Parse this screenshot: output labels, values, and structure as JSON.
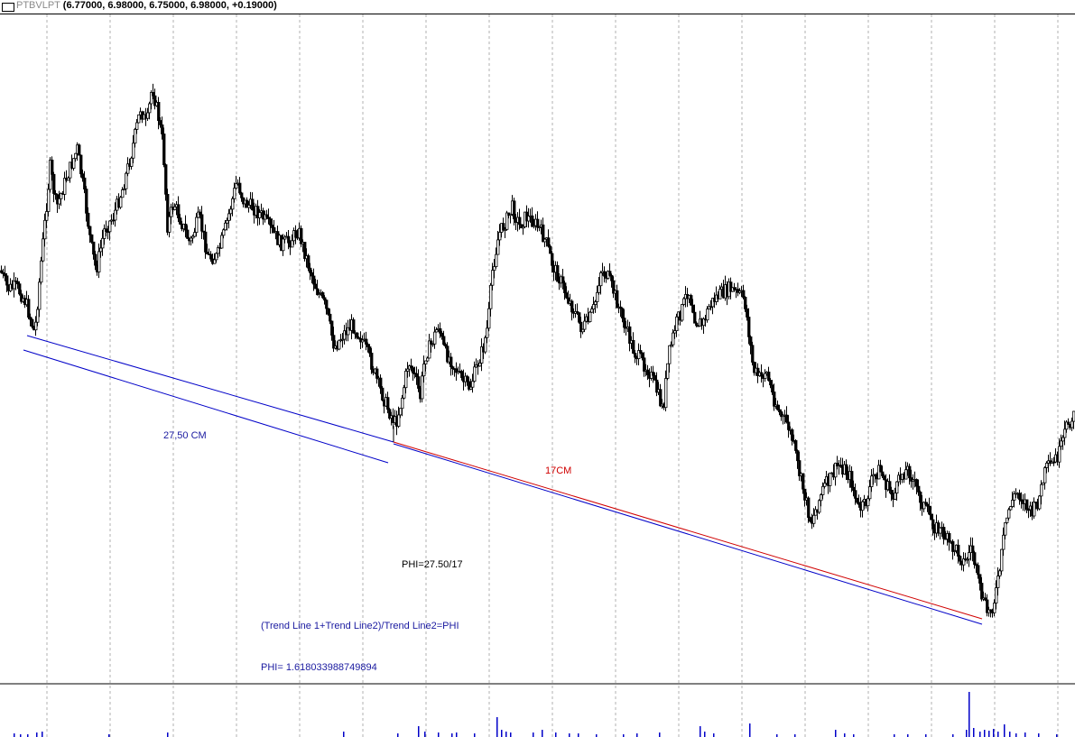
{
  "header": {
    "symbol": "PTBVLPT",
    "ohlc": "(6.77000, 6.98000, 6.75000, 6.98000, +0.19000)"
  },
  "annotations": {
    "trend1_length": "27,50 CM",
    "trend2_length": "17CM",
    "ratio": "PHI=27.50/17",
    "formula": "(Trend Line 1+Trend Line2)/Trend Line2=PHI",
    "phi_value": "PHI= 1.618033988749894"
  },
  "colors": {
    "background": "#ffffff",
    "candles": "#000000",
    "grid": "#b0b0b0",
    "trend_blue": "#0000c8",
    "trend_red": "#d00000",
    "volume_blue": "#0000c8",
    "text_blue": "#1a1aa0",
    "text_red": "#d00000"
  },
  "chart_data": {
    "type": "candlestick",
    "series": "PTBVLPT",
    "last_bar": {
      "open": 6.77,
      "high": 6.98,
      "low": 6.75,
      "close": 6.98,
      "change": 0.19
    },
    "grid": "vertical dotted",
    "volume_panel": true,
    "trend_lines": [
      {
        "name": "Trend Line 1",
        "color": "blue",
        "label": "27,50 CM"
      },
      {
        "name": "Trend Line 2",
        "color": "red",
        "label": "17CM"
      }
    ],
    "path_points": [
      [
        0,
        300
      ],
      [
        8,
        320
      ],
      [
        18,
        318
      ],
      [
        28,
        335
      ],
      [
        38,
        370
      ],
      [
        45,
        290
      ],
      [
        55,
        185
      ],
      [
        62,
        230
      ],
      [
        72,
        200
      ],
      [
        85,
        165
      ],
      [
        92,
        210
      ],
      [
        100,
        270
      ],
      [
        106,
        300
      ],
      [
        115,
        255
      ],
      [
        125,
        240
      ],
      [
        135,
        210
      ],
      [
        145,
        170
      ],
      [
        155,
        120
      ],
      [
        162,
        140
      ],
      [
        168,
        95
      ],
      [
        175,
        130
      ],
      [
        180,
        160
      ],
      [
        185,
        250
      ],
      [
        192,
        225
      ],
      [
        200,
        245
      ],
      [
        210,
        270
      ],
      [
        220,
        240
      ],
      [
        230,
        285
      ],
      [
        240,
        285
      ],
      [
        250,
        250
      ],
      [
        262,
        200
      ],
      [
        270,
        225
      ],
      [
        280,
        230
      ],
      [
        290,
        240
      ],
      [
        300,
        255
      ],
      [
        310,
        270
      ],
      [
        320,
        268
      ],
      [
        330,
        255
      ],
      [
        340,
        290
      ],
      [
        350,
        320
      ],
      [
        360,
        340
      ],
      [
        370,
        385
      ],
      [
        380,
        370
      ],
      [
        390,
        360
      ],
      [
        400,
        375
      ],
      [
        410,
        400
      ],
      [
        420,
        430
      ],
      [
        430,
        455
      ],
      [
        438,
        470
      ],
      [
        445,
        440
      ],
      [
        452,
        400
      ],
      [
        460,
        420
      ],
      [
        465,
        440
      ],
      [
        470,
        395
      ],
      [
        478,
        380
      ],
      [
        485,
        360
      ],
      [
        492,
        390
      ],
      [
        500,
        400
      ],
      [
        510,
        420
      ],
      [
        520,
        430
      ],
      [
        528,
        405
      ],
      [
        535,
        385
      ],
      [
        540,
        360
      ],
      [
        545,
        300
      ],
      [
        552,
        260
      ],
      [
        560,
        245
      ],
      [
        567,
        230
      ],
      [
        575,
        250
      ],
      [
        582,
        240
      ],
      [
        590,
        245
      ],
      [
        598,
        255
      ],
      [
        605,
        270
      ],
      [
        612,
        295
      ],
      [
        620,
        310
      ],
      [
        628,
        330
      ],
      [
        636,
        345
      ],
      [
        644,
        365
      ],
      [
        652,
        355
      ],
      [
        658,
        340
      ],
      [
        665,
        300
      ],
      [
        672,
        305
      ],
      [
        680,
        325
      ],
      [
        688,
        350
      ],
      [
        695,
        370
      ],
      [
        702,
        390
      ],
      [
        710,
        400
      ],
      [
        718,
        410
      ],
      [
        726,
        430
      ],
      [
        734,
        455
      ],
      [
        740,
        395
      ],
      [
        748,
        360
      ],
      [
        756,
        340
      ],
      [
        762,
        320
      ],
      [
        770,
        355
      ],
      [
        778,
        360
      ],
      [
        785,
        340
      ],
      [
        792,
        330
      ],
      [
        800,
        325
      ],
      [
        808,
        320
      ],
      [
        816,
        325
      ],
      [
        824,
        330
      ],
      [
        828,
        360
      ],
      [
        834,
        410
      ],
      [
        842,
        420
      ],
      [
        848,
        410
      ],
      [
        856,
        440
      ],
      [
        864,
        460
      ],
      [
        872,
        470
      ],
      [
        878,
        490
      ],
      [
        884,
        520
      ],
      [
        890,
        545
      ],
      [
        898,
        580
      ],
      [
        905,
        560
      ],
      [
        912,
        540
      ],
      [
        920,
        530
      ],
      [
        928,
        515
      ],
      [
        935,
        520
      ],
      [
        942,
        530
      ],
      [
        950,
        565
      ],
      [
        958,
        560
      ],
      [
        966,
        530
      ],
      [
        974,
        520
      ],
      [
        982,
        540
      ],
      [
        990,
        550
      ],
      [
        998,
        525
      ],
      [
        1006,
        520
      ],
      [
        1014,
        540
      ],
      [
        1020,
        555
      ],
      [
        1028,
        570
      ],
      [
        1036,
        585
      ],
      [
        1044,
        590
      ],
      [
        1052,
        605
      ],
      [
        1060,
        610
      ],
      [
        1068,
        625
      ],
      [
        1076,
        605
      ],
      [
        1082,
        640
      ],
      [
        1088,
        665
      ],
      [
        1094,
        680
      ],
      [
        1100,
        670
      ],
      [
        1106,
        640
      ],
      [
        1112,
        590
      ],
      [
        1118,
        560
      ],
      [
        1126,
        545
      ],
      [
        1134,
        555
      ],
      [
        1142,
        570
      ],
      [
        1150,
        555
      ],
      [
        1158,
        520
      ],
      [
        1166,
        515
      ],
      [
        1174,
        500
      ],
      [
        1182,
        470
      ],
      [
        1190,
        460
      ]
    ],
    "volume_spikes": [
      [
        15,
        4
      ],
      [
        22,
        3
      ],
      [
        30,
        3
      ],
      [
        40,
        5
      ],
      [
        46,
        6
      ],
      [
        120,
        3
      ],
      [
        185,
        5
      ],
      [
        380,
        6
      ],
      [
        440,
        4
      ],
      [
        463,
        12
      ],
      [
        470,
        6
      ],
      [
        485,
        5
      ],
      [
        500,
        4
      ],
      [
        505,
        5
      ],
      [
        525,
        4
      ],
      [
        550,
        22
      ],
      [
        555,
        8
      ],
      [
        560,
        6
      ],
      [
        565,
        5
      ],
      [
        590,
        5
      ],
      [
        600,
        8
      ],
      [
        615,
        5
      ],
      [
        630,
        4
      ],
      [
        640,
        4
      ],
      [
        660,
        3
      ],
      [
        690,
        3
      ],
      [
        705,
        4
      ],
      [
        730,
        5
      ],
      [
        775,
        12
      ],
      [
        780,
        6
      ],
      [
        790,
        4
      ],
      [
        830,
        15
      ],
      [
        860,
        3
      ],
      [
        880,
        3
      ],
      [
        925,
        8
      ],
      [
        935,
        4
      ],
      [
        945,
        3
      ],
      [
        990,
        3
      ],
      [
        1005,
        3
      ],
      [
        1025,
        3
      ],
      [
        1055,
        3
      ],
      [
        1070,
        8
      ],
      [
        1073,
        50
      ],
      [
        1078,
        10
      ],
      [
        1085,
        6
      ],
      [
        1090,
        8
      ],
      [
        1095,
        7
      ],
      [
        1100,
        9
      ],
      [
        1105,
        6
      ],
      [
        1112,
        14
      ],
      [
        1118,
        6
      ],
      [
        1125,
        4
      ],
      [
        1135,
        5
      ],
      [
        1150,
        4
      ],
      [
        1170,
        3
      ]
    ]
  }
}
